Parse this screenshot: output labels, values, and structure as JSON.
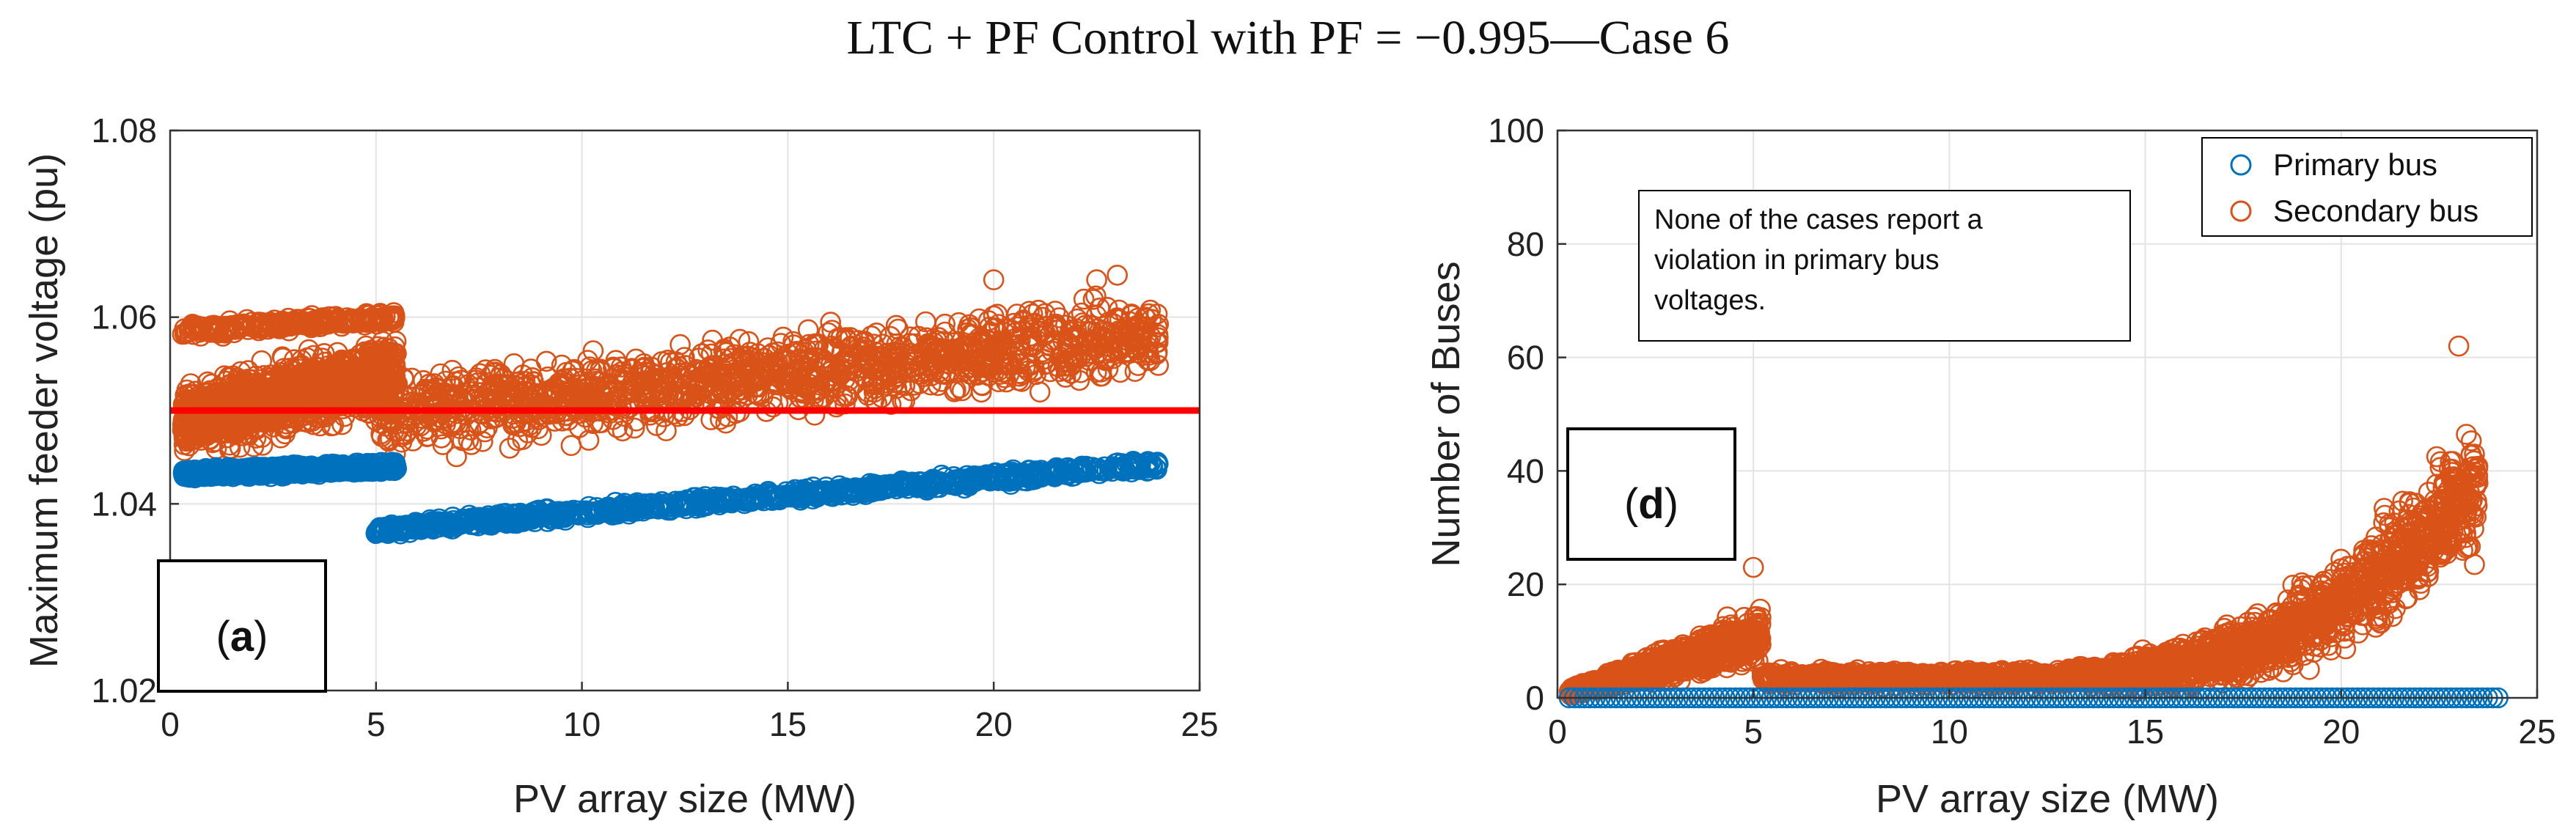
{
  "figure_title": "LTC + PF Control with PF = −0.995—Case 6",
  "colors": {
    "primary": "#0072BD",
    "secondary": "#D95319",
    "threshold": "#FF0000"
  },
  "chart_data": [
    {
      "id": "a",
      "type": "scatter",
      "panel_label": "a",
      "xlabel": "PV array size (MW)",
      "ylabel": "Maximum feeder voltage (pu)",
      "xlim": [
        0,
        25
      ],
      "ylim": [
        1.02,
        1.08
      ],
      "xticks": [
        0,
        5,
        10,
        15,
        20,
        25
      ],
      "yticks": [
        1.02,
        1.04,
        1.06,
        1.08
      ],
      "xtick_labels": [
        "0",
        "5",
        "10",
        "15",
        "20",
        "25"
      ],
      "ytick_labels": [
        "1.02",
        "1.04",
        "1.06",
        "1.08"
      ],
      "grid": true,
      "threshold": {
        "y": 1.05,
        "color": "#FF0000"
      },
      "series": [
        {
          "name": "Primary bus",
          "color": "#0072BD",
          "bands": [
            {
              "x": [
                0.3,
                5.5
              ],
              "y_center": [
                1.0432,
                1.044
              ],
              "spread": 0.0006
            },
            {
              "x": [
                5.0,
                24.0
              ],
              "y_center": [
                1.0372,
                1.0442
              ],
              "spread": 0.0008
            }
          ]
        },
        {
          "name": "Secondary bus",
          "color": "#D95319",
          "bands": [
            {
              "x": [
                0.3,
                5.5
              ],
              "y_center": [
                1.049,
                1.054
              ],
              "spread": 0.0035
            },
            {
              "x": [
                0.3,
                5.5
              ],
              "y_center": [
                1.0585,
                1.06
              ],
              "spread": 0.0006
            },
            {
              "x": [
                5.0,
                24.0
              ],
              "y_center": [
                1.0495,
                1.058
              ],
              "spread": 0.004
            }
          ],
          "outliers": [
            {
              "x": 20.0,
              "y": 1.064
            },
            {
              "x": 22.5,
              "y": 1.064
            },
            {
              "x": 23.0,
              "y": 1.0645
            }
          ]
        }
      ]
    },
    {
      "id": "d",
      "type": "scatter",
      "panel_label": "d",
      "xlabel": "PV array size (MW)",
      "ylabel": "Number of Buses",
      "xlim": [
        0,
        25
      ],
      "ylim": [
        0,
        100
      ],
      "xticks": [
        0,
        5,
        10,
        15,
        20,
        25
      ],
      "yticks": [
        0,
        20,
        40,
        60,
        80,
        100
      ],
      "xtick_labels": [
        "0",
        "5",
        "10",
        "15",
        "20",
        "25"
      ],
      "ytick_labels": [
        "0",
        "20",
        "40",
        "60",
        "80",
        "100"
      ],
      "grid": true,
      "legend": {
        "position": "top-right",
        "entries": [
          "Primary bus",
          "Secondary bus"
        ]
      },
      "annotation": [
        "None of the cases report a",
        "violation in primary bus",
        "voltages."
      ],
      "series": [
        {
          "name": "Primary bus",
          "color": "#0072BD",
          "bands": [
            {
              "x": [
                0.3,
                24.0
              ],
              "y_center": [
                0,
                0
              ],
              "spread": 0
            }
          ]
        },
        {
          "name": "Secondary bus",
          "color": "#D95319",
          "segments": [
            {
              "x": [
                0.3,
                5.2
              ],
              "y": [
                0,
                12
              ],
              "spread_growth": 1.0
            },
            {
              "x": [
                5.2,
                13.0
              ],
              "y": [
                3,
                4
              ],
              "spread_growth": 0.3
            },
            {
              "x": [
                13.0,
                24.0
              ],
              "y": [
                4,
                40
              ],
              "curve": "exponential",
              "spread_growth": 1.0
            }
          ],
          "max_value": 62
        }
      ]
    }
  ]
}
